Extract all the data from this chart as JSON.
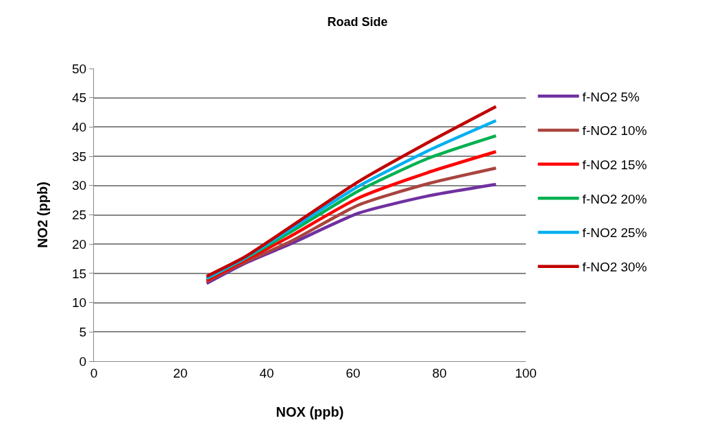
{
  "chart_data": {
    "type": "line",
    "title": "Road Side",
    "xlabel": "NOX (ppb)",
    "ylabel": "NO2 (ppb)",
    "x": [
      26.1,
      34.9,
      45.4,
      61.3,
      77.2,
      93.1
    ],
    "series": [
      {
        "name": "f-NO2 5%",
        "color": "#7030a0",
        "values": [
          13.3,
          16.7,
          20.0,
          25.3,
          28.2,
          30.2
        ]
      },
      {
        "name": "f-NO2 10%",
        "color": "#a9443f",
        "values": [
          13.6,
          16.9,
          20.4,
          26.7,
          30.3,
          33.0
        ]
      },
      {
        "name": "f-NO2 15%",
        "color": "#ff0000",
        "values": [
          13.8,
          17.2,
          21.3,
          27.9,
          32.2,
          35.8
        ]
      },
      {
        "name": "f-NO2 20%",
        "color": "#00b050",
        "values": [
          14.1,
          17.5,
          22.0,
          29.1,
          34.6,
          38.5
        ]
      },
      {
        "name": "f-NO2 25%",
        "color": "#00b0f0",
        "values": [
          14.2,
          17.6,
          22.5,
          29.9,
          35.9,
          41.1
        ]
      },
      {
        "name": "f-NO2 30%",
        "color": "#c00000",
        "values": [
          14.5,
          17.8,
          22.9,
          30.7,
          37.3,
          43.5
        ]
      }
    ],
    "xlim": [
      0,
      100
    ],
    "xticks": [
      0,
      20,
      40,
      60,
      80,
      100
    ],
    "ylim": [
      0,
      50
    ],
    "yticks": [
      0,
      5,
      10,
      15,
      20,
      25,
      30,
      35,
      40,
      45,
      50
    ],
    "grid": "y",
    "legend": "right",
    "marker": "none",
    "line_style": "solid"
  }
}
